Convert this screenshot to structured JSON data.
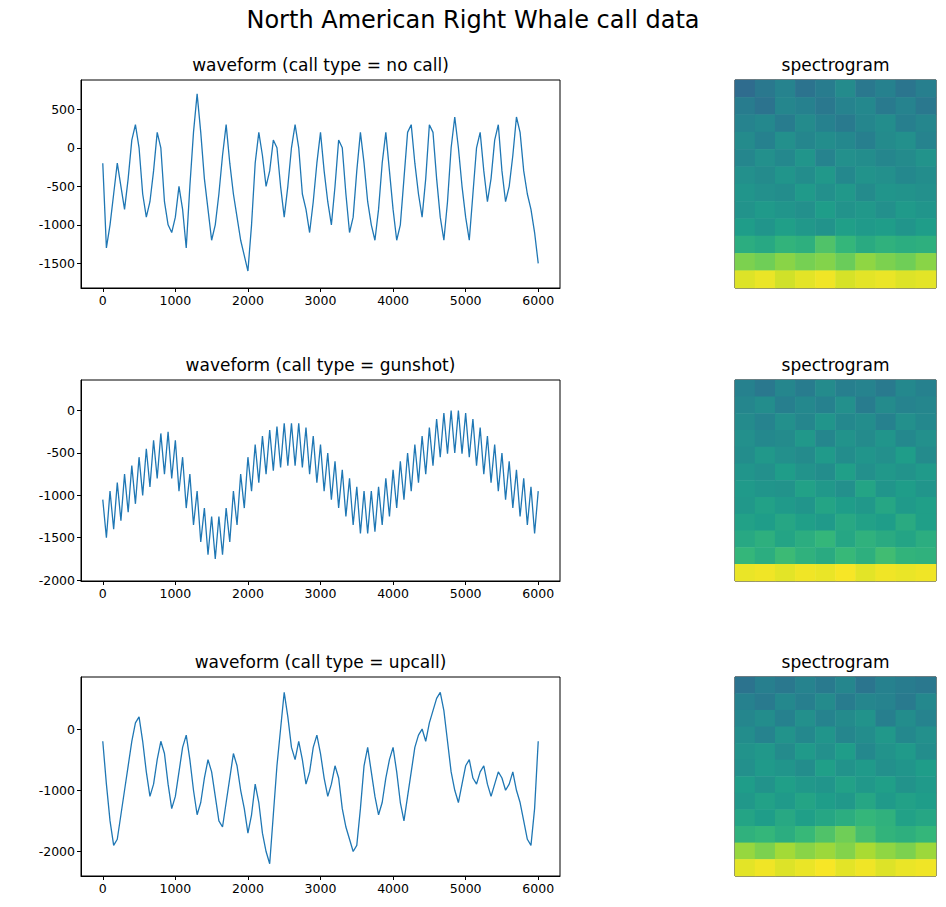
{
  "title": "North American Right Whale call data",
  "chart_data": [
    {
      "type": "line",
      "title": "waveform (call type = no call)",
      "color": "#1f77b4",
      "grid": false,
      "x": [
        0,
        50,
        100,
        150,
        200,
        250,
        300,
        350,
        400,
        450,
        500,
        550,
        600,
        650,
        700,
        750,
        800,
        850,
        900,
        950,
        1000,
        1050,
        1100,
        1150,
        1200,
        1250,
        1300,
        1350,
        1400,
        1450,
        1500,
        1550,
        1600,
        1650,
        1700,
        1750,
        1800,
        1850,
        1900,
        1950,
        2000,
        2050,
        2100,
        2150,
        2200,
        2250,
        2300,
        2350,
        2400,
        2450,
        2500,
        2550,
        2600,
        2650,
        2700,
        2750,
        2800,
        2850,
        2900,
        2950,
        3000,
        3050,
        3100,
        3150,
        3200,
        3250,
        3300,
        3350,
        3400,
        3450,
        3500,
        3550,
        3600,
        3650,
        3700,
        3750,
        3800,
        3850,
        3900,
        3950,
        4000,
        4050,
        4100,
        4150,
        4200,
        4250,
        4300,
        4350,
        4400,
        4450,
        4500,
        4550,
        4600,
        4650,
        4700,
        4750,
        4800,
        4850,
        4900,
        4950,
        5000,
        5050,
        5100,
        5150,
        5200,
        5250,
        5300,
        5350,
        5400,
        5450,
        5500,
        5550,
        5600,
        5650,
        5700,
        5750,
        5800,
        5850,
        5900,
        5950,
        6000
      ],
      "values": [
        -200,
        -1300,
        -1000,
        -600,
        -200,
        -500,
        -800,
        -400,
        100,
        300,
        0,
        -600,
        -900,
        -700,
        -300,
        200,
        0,
        -700,
        -1000,
        -1100,
        -900,
        -500,
        -800,
        -1300,
        -500,
        200,
        700,
        200,
        -400,
        -800,
        -1200,
        -1000,
        -600,
        -100,
        300,
        -200,
        -600,
        -900,
        -1200,
        -1400,
        -1600,
        -1000,
        -200,
        200,
        -100,
        -500,
        -300,
        100,
        0,
        -500,
        -900,
        -500,
        0,
        300,
        0,
        -600,
        -800,
        -1100,
        -700,
        -200,
        200,
        -300,
        -700,
        -1000,
        -500,
        100,
        0,
        -600,
        -1100,
        -900,
        -300,
        200,
        -200,
        -700,
        -1000,
        -1200,
        -800,
        -200,
        200,
        -300,
        -800,
        -1200,
        -1000,
        -400,
        200,
        300,
        -200,
        -600,
        -900,
        -400,
        300,
        200,
        -400,
        -900,
        -1200,
        -700,
        0,
        400,
        0,
        -500,
        -900,
        -1200,
        -600,
        0,
        200,
        -300,
        -700,
        -400,
        100,
        300,
        -300,
        -700,
        -500,
        -100,
        400,
        200,
        -300,
        -600,
        -800,
        -1100,
        -1500
      ],
      "xlim": [
        -300,
        6300
      ],
      "xticks": [
        0,
        1000,
        2000,
        3000,
        4000,
        5000,
        6000
      ],
      "ylim": [
        -1820,
        880
      ],
      "yticks": [
        -1500,
        -1000,
        -500,
        0,
        500
      ]
    },
    {
      "type": "heatmap",
      "title": "spectrogram",
      "tick_labels": false,
      "zlim": [
        0,
        1
      ],
      "cells": [
        [
          0.35,
          0.4,
          0.45,
          0.38,
          0.42,
          0.48,
          0.4,
          0.44,
          0.39,
          0.43
        ],
        [
          0.42,
          0.38,
          0.46,
          0.44,
          0.4,
          0.45,
          0.47,
          0.41,
          0.45,
          0.4
        ],
        [
          0.45,
          0.47,
          0.42,
          0.48,
          0.44,
          0.41,
          0.46,
          0.49,
          0.43,
          0.46
        ],
        [
          0.48,
          0.44,
          0.5,
          0.46,
          0.49,
          0.47,
          0.43,
          0.48,
          0.5,
          0.45
        ],
        [
          0.46,
          0.5,
          0.47,
          0.52,
          0.45,
          0.5,
          0.49,
          0.46,
          0.48,
          0.51
        ],
        [
          0.5,
          0.48,
          0.52,
          0.49,
          0.53,
          0.47,
          0.51,
          0.5,
          0.47,
          0.49
        ],
        [
          0.52,
          0.5,
          0.49,
          0.54,
          0.5,
          0.53,
          0.48,
          0.52,
          0.51,
          0.5
        ],
        [
          0.51,
          0.54,
          0.52,
          0.5,
          0.55,
          0.51,
          0.53,
          0.5,
          0.54,
          0.52
        ],
        [
          0.55,
          0.52,
          0.56,
          0.53,
          0.51,
          0.56,
          0.54,
          0.55,
          0.52,
          0.55
        ],
        [
          0.62,
          0.6,
          0.65,
          0.63,
          0.72,
          0.66,
          0.61,
          0.64,
          0.62,
          0.63
        ],
        [
          0.8,
          0.78,
          0.82,
          0.79,
          0.81,
          0.77,
          0.83,
          0.8,
          0.78,
          0.82
        ],
        [
          0.95,
          0.97,
          0.93,
          0.96,
          0.98,
          0.94,
          0.96,
          0.97,
          0.95,
          0.96
        ]
      ]
    },
    {
      "type": "line",
      "title": "waveform (call type = gunshot)",
      "color": "#1f77b4",
      "grid": false,
      "x": [
        0,
        50,
        100,
        150,
        200,
        250,
        300,
        350,
        400,
        450,
        500,
        550,
        600,
        650,
        700,
        750,
        800,
        850,
        900,
        950,
        1000,
        1050,
        1100,
        1150,
        1200,
        1250,
        1300,
        1350,
        1400,
        1450,
        1500,
        1550,
        1600,
        1650,
        1700,
        1750,
        1800,
        1850,
        1900,
        1950,
        2000,
        2050,
        2100,
        2150,
        2200,
        2250,
        2300,
        2350,
        2400,
        2450,
        2500,
        2550,
        2600,
        2650,
        2700,
        2750,
        2800,
        2850,
        2900,
        2950,
        3000,
        3050,
        3100,
        3150,
        3200,
        3250,
        3300,
        3350,
        3400,
        3450,
        3500,
        3550,
        3600,
        3650,
        3700,
        3750,
        3800,
        3850,
        3900,
        3950,
        4000,
        4050,
        4100,
        4150,
        4200,
        4250,
        4300,
        4350,
        4400,
        4450,
        4500,
        4550,
        4600,
        4650,
        4700,
        4750,
        4800,
        4850,
        4900,
        4950,
        5000,
        5050,
        5100,
        5150,
        5200,
        5250,
        5300,
        5350,
        5400,
        5450,
        5500,
        5550,
        5600,
        5650,
        5700,
        5750,
        5800,
        5850,
        5900,
        5950,
        6000
      ],
      "values": [
        -1050,
        -1500,
        -950,
        -1400,
        -850,
        -1300,
        -750,
        -1200,
        -650,
        -1100,
        -550,
        -1000,
        -450,
        -900,
        -350,
        -800,
        -270,
        -750,
        -250,
        -800,
        -350,
        -950,
        -550,
        -1150,
        -750,
        -1350,
        -950,
        -1550,
        -1150,
        -1700,
        -1250,
        -1750,
        -1250,
        -1700,
        -1150,
        -1550,
        -950,
        -1350,
        -750,
        -1150,
        -550,
        -950,
        -400,
        -850,
        -300,
        -750,
        -230,
        -710,
        -190,
        -670,
        -150,
        -650,
        -150,
        -650,
        -150,
        -670,
        -200,
        -750,
        -300,
        -850,
        -400,
        -950,
        -500,
        -1050,
        -600,
        -1150,
        -700,
        -1250,
        -800,
        -1350,
        -900,
        -1450,
        -950,
        -1450,
        -950,
        -1430,
        -900,
        -1350,
        -800,
        -1250,
        -700,
        -1150,
        -600,
        -1050,
        -500,
        -950,
        -400,
        -850,
        -300,
        -750,
        -200,
        -650,
        -100,
        -550,
        -30,
        -510,
        0,
        -500,
        0,
        -510,
        -30,
        -550,
        -100,
        -650,
        -200,
        -750,
        -300,
        -850,
        -400,
        -950,
        -500,
        -1050,
        -600,
        -1150,
        -700,
        -1250,
        -800,
        -1350,
        -900,
        -1450,
        -950
      ],
      "xlim": [
        -300,
        6300
      ],
      "xticks": [
        0,
        1000,
        2000,
        3000,
        4000,
        5000,
        6000
      ],
      "ylim": [
        -2010,
        360
      ],
      "yticks": [
        -2000,
        -1500,
        -1000,
        -500,
        0
      ]
    },
    {
      "type": "heatmap",
      "title": "spectrogram",
      "tick_labels": false,
      "zlim": [
        0,
        1
      ],
      "cells": [
        [
          0.44,
          0.4,
          0.46,
          0.42,
          0.48,
          0.43,
          0.45,
          0.41,
          0.47,
          0.44
        ],
        [
          0.46,
          0.49,
          0.43,
          0.47,
          0.44,
          0.5,
          0.42,
          0.48,
          0.45,
          0.46
        ],
        [
          0.48,
          0.45,
          0.5,
          0.46,
          0.52,
          0.47,
          0.49,
          0.44,
          0.5,
          0.47
        ],
        [
          0.5,
          0.47,
          0.48,
          0.53,
          0.46,
          0.51,
          0.48,
          0.52,
          0.47,
          0.5
        ],
        [
          0.49,
          0.53,
          0.5,
          0.48,
          0.54,
          0.49,
          0.52,
          0.5,
          0.55,
          0.48
        ],
        [
          0.52,
          0.5,
          0.55,
          0.51,
          0.49,
          0.56,
          0.5,
          0.53,
          0.51,
          0.54
        ],
        [
          0.54,
          0.52,
          0.51,
          0.57,
          0.53,
          0.5,
          0.58,
          0.52,
          0.55,
          0.52
        ],
        [
          0.53,
          0.57,
          0.54,
          0.52,
          0.58,
          0.55,
          0.53,
          0.59,
          0.54,
          0.56
        ],
        [
          0.57,
          0.55,
          0.59,
          0.56,
          0.54,
          0.6,
          0.57,
          0.55,
          0.61,
          0.56
        ],
        [
          0.6,
          0.63,
          0.58,
          0.62,
          0.66,
          0.59,
          0.64,
          0.61,
          0.58,
          0.62
        ],
        [
          0.66,
          0.62,
          0.68,
          0.64,
          0.61,
          0.67,
          0.63,
          0.69,
          0.65,
          0.64
        ],
        [
          0.97,
          0.98,
          0.96,
          0.98,
          0.97,
          0.99,
          0.96,
          0.98,
          0.97,
          0.98
        ]
      ]
    },
    {
      "type": "line",
      "title": "waveform (call type = upcall)",
      "color": "#1f77b4",
      "grid": false,
      "x": [
        0,
        50,
        100,
        150,
        200,
        250,
        300,
        350,
        400,
        450,
        500,
        550,
        600,
        650,
        700,
        750,
        800,
        850,
        900,
        950,
        1000,
        1050,
        1100,
        1150,
        1200,
        1250,
        1300,
        1350,
        1400,
        1450,
        1500,
        1550,
        1600,
        1650,
        1700,
        1750,
        1800,
        1850,
        1900,
        1950,
        2000,
        2050,
        2100,
        2150,
        2200,
        2250,
        2300,
        2350,
        2400,
        2450,
        2500,
        2550,
        2600,
        2650,
        2700,
        2750,
        2800,
        2850,
        2900,
        2950,
        3000,
        3050,
        3100,
        3150,
        3200,
        3250,
        3300,
        3350,
        3400,
        3450,
        3500,
        3550,
        3600,
        3650,
        3700,
        3750,
        3800,
        3850,
        3900,
        3950,
        4000,
        4050,
        4100,
        4150,
        4200,
        4250,
        4300,
        4350,
        4400,
        4450,
        4500,
        4550,
        4600,
        4650,
        4700,
        4750,
        4800,
        4850,
        4900,
        4950,
        5000,
        5050,
        5100,
        5150,
        5200,
        5250,
        5300,
        5350,
        5400,
        5450,
        5500,
        5550,
        5600,
        5650,
        5700,
        5750,
        5800,
        5850,
        5900,
        5950,
        6000
      ],
      "values": [
        -200,
        -900,
        -1500,
        -1900,
        -1800,
        -1400,
        -1000,
        -600,
        -200,
        100,
        200,
        -200,
        -700,
        -1100,
        -900,
        -500,
        -200,
        -400,
        -900,
        -1300,
        -1100,
        -700,
        -300,
        -100,
        -500,
        -1000,
        -1400,
        -1200,
        -800,
        -500,
        -700,
        -1100,
        -1500,
        -1600,
        -1200,
        -800,
        -400,
        -600,
        -1000,
        -1300,
        -1700,
        -1400,
        -900,
        -1200,
        -1700,
        -2000,
        -2200,
        -1400,
        -600,
        0,
        600,
        200,
        -300,
        -500,
        -200,
        -500,
        -900,
        -700,
        -300,
        -100,
        -400,
        -800,
        -1100,
        -900,
        -600,
        -800,
        -1300,
        -1600,
        -1800,
        -2000,
        -1900,
        -1300,
        -600,
        -300,
        -700,
        -1100,
        -1400,
        -1200,
        -800,
        -500,
        -300,
        -700,
        -1200,
        -1500,
        -1100,
        -700,
        -300,
        -100,
        0,
        -200,
        100,
        300,
        500,
        600,
        300,
        -200,
        -700,
        -1000,
        -1200,
        -900,
        -600,
        -500,
        -800,
        -900,
        -700,
        -600,
        -900,
        -1100,
        -900,
        -700,
        -800,
        -1000,
        -900,
        -700,
        -1000,
        -1200,
        -1500,
        -1800,
        -1900,
        -1300,
        -200
      ],
      "xlim": [
        -300,
        6300
      ],
      "xticks": [
        0,
        1000,
        2000,
        3000,
        4000,
        5000,
        6000
      ],
      "ylim": [
        -2400,
        850
      ],
      "yticks": [
        -2000,
        -1000,
        0
      ]
    },
    {
      "type": "heatmap",
      "title": "spectrogram",
      "tick_labels": false,
      "zlim": [
        0,
        1
      ],
      "cells": [
        [
          0.38,
          0.43,
          0.4,
          0.45,
          0.41,
          0.46,
          0.39,
          0.44,
          0.42,
          0.4
        ],
        [
          0.44,
          0.41,
          0.47,
          0.43,
          0.48,
          0.42,
          0.46,
          0.45,
          0.41,
          0.47
        ],
        [
          0.46,
          0.49,
          0.44,
          0.5,
          0.45,
          0.48,
          0.51,
          0.43,
          0.49,
          0.45
        ],
        [
          0.49,
          0.45,
          0.51,
          0.47,
          0.52,
          0.46,
          0.49,
          0.53,
          0.47,
          0.5
        ],
        [
          0.51,
          0.53,
          0.48,
          0.54,
          0.5,
          0.55,
          0.47,
          0.51,
          0.54,
          0.49
        ],
        [
          0.5,
          0.54,
          0.52,
          0.49,
          0.56,
          0.51,
          0.54,
          0.5,
          0.52,
          0.55
        ],
        [
          0.55,
          0.51,
          0.56,
          0.53,
          0.52,
          0.57,
          0.53,
          0.56,
          0.51,
          0.54
        ],
        [
          0.53,
          0.57,
          0.54,
          0.58,
          0.55,
          0.53,
          0.59,
          0.54,
          0.57,
          0.55
        ],
        [
          0.58,
          0.55,
          0.6,
          0.56,
          0.59,
          0.62,
          0.66,
          0.64,
          0.57,
          0.59
        ],
        [
          0.64,
          0.66,
          0.62,
          0.67,
          0.72,
          0.78,
          0.7,
          0.65,
          0.63,
          0.66
        ],
        [
          0.84,
          0.8,
          0.86,
          0.82,
          0.85,
          0.81,
          0.87,
          0.83,
          0.8,
          0.85
        ],
        [
          0.96,
          0.98,
          0.95,
          0.97,
          0.99,
          0.96,
          0.98,
          0.95,
          0.97,
          0.98
        ]
      ]
    }
  ]
}
